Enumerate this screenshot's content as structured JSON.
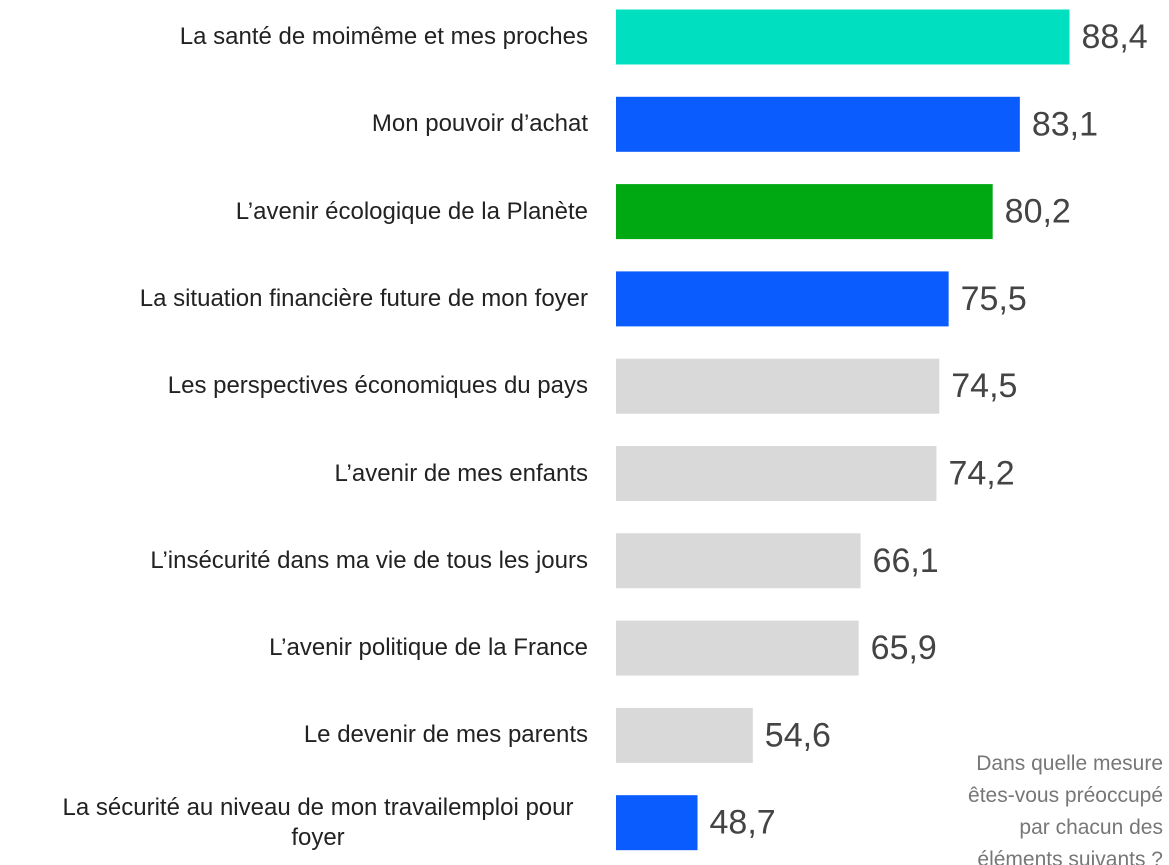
{
  "chart_data": {
    "type": "hbar",
    "categories": [
      "La santé de moimême et mes proches",
      "Mon pouvoir d’achat",
      "L’avenir écologique de la Planète",
      "La situation financière future de mon foyer",
      "Les perspectives économiques du pays",
      "L’avenir de mes enfants",
      "L’insécurité dans ma vie de tous les jours",
      "L’avenir politique de la France",
      "Le devenir de mes parents",
      "La sécurité au niveau de mon travailemploi pour foyer"
    ],
    "values": [
      88.4,
      83.1,
      80.2,
      75.5,
      74.5,
      74.2,
      66.1,
      65.9,
      54.6,
      48.7
    ],
    "value_labels": [
      "88,4",
      "83,1",
      "80,2",
      "75,5",
      "74,5",
      "74,2",
      "66,1",
      "65,9",
      "54,6",
      "48,7"
    ],
    "colors": [
      "#00e0c0",
      "#0a5cff",
      "#00a812",
      "#0a5cff",
      "#d9d9d9",
      "#d9d9d9",
      "#d9d9d9",
      "#d9d9d9",
      "#d9d9d9",
      "#0a5cff"
    ],
    "xlim": [
      40,
      90
    ],
    "annotation": [
      "Dans quelle mesure",
      "êtes-vous préoccupé",
      "par chacun des",
      "éléments suivants ?"
    ]
  }
}
